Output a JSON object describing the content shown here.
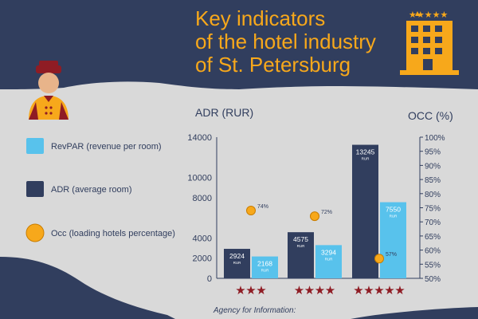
{
  "header": {
    "title_lines": [
      "Key indicators",
      "of the hotel industry",
      "of St. Petersburg"
    ]
  },
  "colors": {
    "navy": "#313e5e",
    "accent": "#f7a81b",
    "revpar": "#58c2ec",
    "adr": "#313e5e",
    "occ": "#f7a81b",
    "stars": "#8f1c24",
    "background": "#d9d9d9"
  },
  "icons": [
    "bellboy-icon",
    "hotel-building-icon",
    "star-icon"
  ],
  "legend": [
    {
      "label": "RevPAR (revenue per room)",
      "key": "revpar",
      "shape": "square"
    },
    {
      "label": "ADR (average room)",
      "key": "adr",
      "shape": "square"
    },
    {
      "label": "Occ (loading hotels percentage)",
      "key": "occ",
      "shape": "circle"
    }
  ],
  "chart_data": {
    "type": "bar",
    "ylabel_left": "ADR (RUR)",
    "ylabel_right": "OCC (%)",
    "ylim_left": [
      0,
      14000
    ],
    "ylim_right": [
      50,
      100
    ],
    "left_ticks": [
      0,
      2000,
      4000,
      8000,
      10000,
      14000
    ],
    "right_ticks": [
      "50%",
      "55%",
      "60%",
      "65%",
      "70%",
      "75%",
      "80%",
      "85%",
      "90%",
      "95%",
      "100%"
    ],
    "right_ticks_values": [
      50,
      55,
      60,
      65,
      70,
      75,
      80,
      85,
      90,
      95,
      100
    ],
    "categories": [
      "★★★",
      "★★★★",
      "★★★★★"
    ],
    "star_counts": [
      3,
      4,
      5
    ],
    "series": [
      {
        "name": "ADR (average room)",
        "key": "adr",
        "values": [
          2924,
          4575,
          13245
        ],
        "value_labels": [
          "2924",
          "4575",
          "13245"
        ]
      },
      {
        "name": "RevPAR (revenue per room)",
        "key": "revpar",
        "values": [
          2168,
          3294,
          7550
        ],
        "value_labels": [
          "2168",
          "3294",
          "7550"
        ]
      },
      {
        "name": "Occ (loading hotels percentage)",
        "key": "occ",
        "values": [
          74,
          72,
          57
        ],
        "value_labels": [
          "74%",
          "72%",
          "57%"
        ]
      }
    ],
    "unit_label": "RUR"
  },
  "footer": {
    "source_label": "Agency for Information:"
  }
}
